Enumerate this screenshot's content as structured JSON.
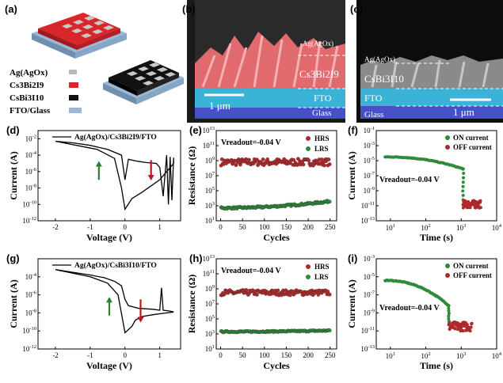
{
  "panels": {
    "a": {
      "label": "(a)",
      "legend": [
        {
          "text": "Ag(AgOx)",
          "color": "#b8b8b8"
        },
        {
          "text": "Cs3Bi2I9",
          "color": "#d9262b"
        },
        {
          "text": "CsBi3I10",
          "color": "#111111"
        },
        {
          "text": "FTO/Glass",
          "color": "#9ab8d6"
        }
      ]
    },
    "b": {
      "label": "(b)",
      "layers": [
        "Ag(AgOx)",
        "Cs3Bi2I9",
        "FTO",
        "Glass"
      ],
      "scale": "1 μm",
      "colors": {
        "film": "#e06a6e",
        "fto": "#3bb3d6",
        "glass": "#4650c8"
      }
    },
    "c": {
      "label": "(c)",
      "layers": [
        "Ag(AgOx)",
        "CsBi3I10",
        "FTO",
        "Glass"
      ],
      "scale": "1 μm",
      "colors": {
        "film": "#888888",
        "fto": "#3bb3d6",
        "glass": "#4650c8"
      }
    },
    "d": {
      "label": "(d)",
      "device": "Ag(AgOx)/Cs3Bi2I9/FTO"
    },
    "e": {
      "label": "(e)",
      "annotation": "Vreadout=-0.04 V"
    },
    "f": {
      "label": "(f)",
      "annotation": "Vreadout=-0.04 V"
    },
    "g": {
      "label": "(g)",
      "device": "Ag(AgOx)/CsBi3I10/FTO"
    },
    "h": {
      "label": "(h)",
      "annotation": "Vreadout=-0.04 V"
    },
    "i": {
      "label": "(i)",
      "annotation": "Vreadout=-0.04 V"
    }
  },
  "colors": {
    "hrs": "#b0282a",
    "lrs": "#2e8b3a",
    "on": "#2e8b3a",
    "off": "#b0282a",
    "arrow_up": "#2e7d32",
    "arrow_down": "#b71c1c"
  },
  "chart_data": [
    {
      "id": "d",
      "type": "line",
      "xlabel": "Voltage (V)",
      "ylabel": "Current (A)",
      "xlim": [
        -2.5,
        1.6
      ],
      "ylim_exp": [
        -12,
        -1
      ],
      "xticks": [
        -2,
        -1,
        0,
        1
      ],
      "yticks_exp": [
        -12,
        -10,
        -8,
        -6,
        -4,
        -2
      ],
      "series": [
        {
          "name": "Ag(AgOx)/Cs3Bi2I9/FTO",
          "style": "iv1"
        }
      ]
    },
    {
      "id": "e",
      "type": "scatter",
      "xlabel": "Cycles",
      "ylabel": "Resistance (Ω)",
      "xlim": [
        -10,
        265
      ],
      "ylim_exp": [
        1,
        13
      ],
      "xticks": [
        0,
        50,
        100,
        150,
        200,
        250
      ],
      "yticks_exp": [
        1,
        3,
        5,
        7,
        9,
        11,
        13
      ],
      "series": [
        {
          "name": "HRS",
          "level_exp": 8.8,
          "spread": 0.45,
          "trend": 0.0,
          "color_key": "hrs"
        },
        {
          "name": "LRS",
          "level_exp": 2.7,
          "spread": 0.12,
          "trend": 0.9,
          "color_key": "lrs"
        }
      ]
    },
    {
      "id": "f",
      "type": "scatter",
      "xlabel": "Time (s)",
      "ylabel": "Current (A)",
      "xlim_exp": [
        0.6,
        4
      ],
      "ylim_exp": [
        -13,
        -1
      ],
      "xticks_exp": [
        1,
        2,
        3,
        4
      ],
      "yticks_exp": [
        -13,
        -11,
        -9,
        -7,
        -5,
        -3,
        -1
      ],
      "series": [
        {
          "name": "ON current",
          "color_key": "on"
        },
        {
          "name": "OFF current",
          "color_key": "off"
        }
      ]
    },
    {
      "id": "g",
      "type": "line",
      "xlabel": "Voltage (V)",
      "ylabel": "Current (A)",
      "xlim": [
        -2.5,
        1.6
      ],
      "ylim_exp": [
        -12,
        -2
      ],
      "xticks": [
        -2,
        -1,
        0,
        1
      ],
      "yticks_exp": [
        -12,
        -10,
        -8,
        -6,
        -4
      ],
      "series": [
        {
          "name": "Ag(AgOx)/CsBi3I10/FTO",
          "style": "iv2"
        }
      ]
    },
    {
      "id": "h",
      "type": "scatter",
      "xlabel": "Cycles",
      "ylabel": "Resistance (Ω)",
      "xlim": [
        -10,
        265
      ],
      "ylim_exp": [
        1,
        13
      ],
      "xticks": [
        0,
        50,
        100,
        150,
        200,
        250
      ],
      "yticks_exp": [
        1,
        3,
        5,
        7,
        9,
        11,
        13
      ],
      "series": [
        {
          "name": "HRS",
          "level_exp": 8.5,
          "spread": 0.35,
          "trend": 0.0,
          "color_key": "hrs"
        },
        {
          "name": "LRS",
          "level_exp": 3.3,
          "spread": 0.08,
          "trend": 0.15,
          "color_key": "lrs"
        }
      ]
    },
    {
      "id": "i",
      "type": "scatter",
      "xlabel": "Time (s)",
      "ylabel": "Current (A)",
      "xlim_exp": [
        0.6,
        4
      ],
      "ylim_exp": [
        -13,
        -3
      ],
      "xticks_exp": [
        1,
        2,
        3,
        4
      ],
      "yticks_exp": [
        -13,
        -11,
        -9,
        -7,
        -5,
        -3
      ],
      "series": [
        {
          "name": "ON current",
          "color_key": "on"
        },
        {
          "name": "OFF current",
          "color_key": "off"
        }
      ]
    }
  ]
}
